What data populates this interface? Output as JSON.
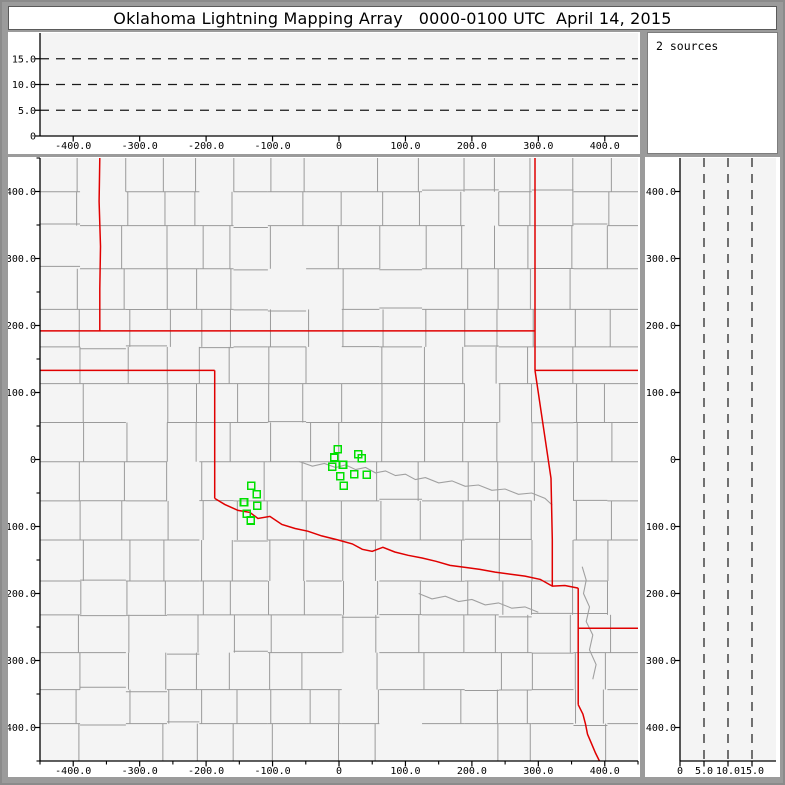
{
  "window": {
    "title": "Oklahoma Lightning Mapping Array   0000-0100 UTC  April 14, 2015"
  },
  "sources_panel": {
    "label": "2 sources"
  },
  "colors": {
    "window_bg": "#9b9b9b",
    "panel_bg": "#ffffff",
    "plot_bg": "#f4f4f4",
    "axis": "#000000",
    "dashed_line": "#1a1a1a",
    "county_line": "#9a9a9a",
    "river_line": "#a0a0a0",
    "state_line": "#e00000",
    "station": "#00e000"
  },
  "chart_data": {
    "type": "scatter",
    "coordinate_units": "km",
    "panels": [
      {
        "id": "ew_altitude_panel",
        "position": "top",
        "description": "altitude (km) vs east-west distance (km); no sources visible",
        "xlim": [
          -450,
          450
        ],
        "ylim": [
          0,
          20
        ],
        "x_ticks": [
          {
            "v": -400,
            "label": "-400.0"
          },
          {
            "v": -300,
            "label": "-300.0"
          },
          {
            "v": -200,
            "label": "-200.0"
          },
          {
            "v": -100,
            "label": "-100.0"
          },
          {
            "v": 0,
            "label": "0"
          },
          {
            "v": 100,
            "label": "100.0"
          },
          {
            "v": 200,
            "label": "200.0"
          },
          {
            "v": 300,
            "label": "300.0"
          },
          {
            "v": 400,
            "label": "400.0"
          }
        ],
        "y_ticks": [
          {
            "v": 0,
            "label": "0"
          },
          {
            "v": 5,
            "label": "5.0"
          },
          {
            "v": 10,
            "label": "10.0"
          },
          {
            "v": 15,
            "label": "15.0"
          }
        ],
        "dashed_lines": {
          "axis": "y",
          "values": [
            5,
            10,
            15
          ]
        },
        "points": []
      },
      {
        "id": "plan_view_panel",
        "position": "main",
        "description": "plan view map, north-south km vs east-west km",
        "xlim": [
          -450,
          450
        ],
        "ylim": [
          -450,
          450
        ],
        "minor_tick_step": 50,
        "x_ticks": [
          {
            "v": -400,
            "label": "-400.0"
          },
          {
            "v": -300,
            "label": "-300.0"
          },
          {
            "v": -200,
            "label": "-200.0"
          },
          {
            "v": -100,
            "label": "-100.0"
          },
          {
            "v": 0,
            "label": "0"
          },
          {
            "v": 100,
            "label": "100.0"
          },
          {
            "v": 200,
            "label": "200.0"
          },
          {
            "v": 300,
            "label": "300.0"
          },
          {
            "v": 400,
            "label": "400.0"
          }
        ],
        "y_ticks": [
          {
            "v": 400,
            "label": "400.0"
          },
          {
            "v": 300,
            "label": "300.0"
          },
          {
            "v": 200,
            "label": "200.0"
          },
          {
            "v": 100,
            "label": "100.0"
          },
          {
            "v": 0,
            "label": "0"
          },
          {
            "v": -100,
            "label": "-100.0"
          },
          {
            "v": -200,
            "label": "-200.0"
          },
          {
            "v": -300,
            "label": "-300.0"
          },
          {
            "v": -400,
            "label": "-400.0"
          }
        ],
        "stations": [
          [
            -2,
            15
          ],
          [
            -7,
            3
          ],
          [
            29,
            8
          ],
          [
            34,
            2
          ],
          [
            -10,
            -11
          ],
          [
            6,
            -8
          ],
          [
            2,
            -25
          ],
          [
            23,
            -22
          ],
          [
            42,
            -23
          ],
          [
            7,
            -39
          ],
          [
            -132,
            -39
          ],
          [
            -124,
            -52
          ],
          [
            -143,
            -64
          ],
          [
            -123,
            -69
          ],
          [
            -139,
            -81
          ],
          [
            -133,
            -91
          ]
        ],
        "state_borders": [
          {
            "name": "kansas-colorado-border",
            "points": [
              [
                -360,
                450
              ],
              [
                -361,
                385
              ],
              [
                -359,
                318
              ],
              [
                -360,
                255
              ],
              [
                -360,
                192
              ]
            ]
          },
          {
            "name": "thirty-seventh-parallel",
            "points": [
              [
                -450,
                192
              ],
              [
                295,
                192
              ]
            ]
          },
          {
            "name": "missouri-western-border",
            "points": [
              [
                295,
                450
              ],
              [
                295,
                133
              ]
            ]
          },
          {
            "name": "missouri-arkansas-border",
            "points": [
              [
                295,
                133
              ],
              [
                450,
                133
              ]
            ]
          },
          {
            "name": "panhandle-southern-border",
            "points": [
              [
                -450,
                133
              ],
              [
                -187,
                133
              ]
            ]
          },
          {
            "name": "oklahoma-western-border",
            "points": [
              [
                -187,
                133
              ],
              [
                -187,
                -58
              ]
            ]
          },
          {
            "name": "oklahoma-arkansas-border",
            "points": [
              [
                295,
                133
              ],
              [
                319,
                -28
              ],
              [
                321,
                -120
              ],
              [
                321,
                -189
              ]
            ]
          },
          {
            "name": "red-river-border",
            "points": [
              [
                -187,
                -58
              ],
              [
                -172,
                -67
              ],
              [
                -152,
                -76
              ],
              [
                -134,
                -79
              ],
              [
                -122,
                -88
              ],
              [
                -104,
                -85
              ],
              [
                -86,
                -97
              ],
              [
                -66,
                -103
              ],
              [
                -47,
                -107
              ],
              [
                -26,
                -114
              ],
              [
                -2,
                -120
              ],
              [
                20,
                -126
              ],
              [
                35,
                -134
              ],
              [
                50,
                -137
              ],
              [
                66,
                -131
              ],
              [
                84,
                -138
              ],
              [
                104,
                -143
              ],
              [
                125,
                -147
              ],
              [
                146,
                -152
              ],
              [
                167,
                -158
              ],
              [
                190,
                -161
              ],
              [
                212,
                -164
              ],
              [
                235,
                -168
              ],
              [
                257,
                -171
              ],
              [
                280,
                -174
              ],
              [
                303,
                -179
              ],
              [
                321,
                -189
              ],
              [
                340,
                -188
              ],
              [
                360,
                -192
              ]
            ]
          },
          {
            "name": "texas-arkansas-border",
            "points": [
              [
                360,
                -192
              ],
              [
                360,
                -366
              ]
            ]
          },
          {
            "name": "arkansas-louisiana-border",
            "points": [
              [
                360,
                -252
              ],
              [
                450,
                -252
              ]
            ]
          },
          {
            "name": "sabine-river-border",
            "points": [
              [
                360,
                -366
              ],
              [
                367,
                -380
              ],
              [
                371,
                -395
              ],
              [
                374,
                -410
              ],
              [
                380,
                -424
              ],
              [
                386,
                -438
              ],
              [
                393,
                -452
              ],
              [
                398,
                -462
              ]
            ]
          }
        ],
        "rivers": [
          {
            "name": "river-central",
            "points": [
              [
                -60,
                -3
              ],
              [
                -40,
                -10
              ],
              [
                -22,
                -6
              ],
              [
                -5,
                -12
              ],
              [
                10,
                -8
              ],
              [
                25,
                -15
              ],
              [
                40,
                -12
              ],
              [
                55,
                -20
              ],
              [
                70,
                -17
              ],
              [
                85,
                -24
              ],
              [
                100,
                -22
              ],
              [
                115,
                -30
              ],
              [
                130,
                -27
              ],
              [
                150,
                -35
              ],
              [
                170,
                -32
              ],
              [
                190,
                -40
              ],
              [
                210,
                -38
              ],
              [
                230,
                -46
              ],
              [
                250,
                -44
              ],
              [
                270,
                -52
              ],
              [
                290,
                -50
              ],
              [
                310,
                -58
              ],
              [
                321,
                -68
              ]
            ]
          },
          {
            "name": "river-south",
            "points": [
              [
                120,
                -200
              ],
              [
                140,
                -208
              ],
              [
                160,
                -204
              ],
              [
                180,
                -212
              ],
              [
                200,
                -209
              ],
              [
                220,
                -217
              ],
              [
                240,
                -214
              ],
              [
                260,
                -222
              ],
              [
                280,
                -220
              ],
              [
                300,
                -228
              ]
            ]
          },
          {
            "name": "river-east",
            "points": [
              [
                366,
                -160
              ],
              [
                372,
                -180
              ],
              [
                368,
                -200
              ],
              [
                377,
                -220
              ],
              [
                372,
                -242
              ],
              [
                382,
                -262
              ],
              [
                377,
                -284
              ],
              [
                387,
                -306
              ],
              [
                382,
                -328
              ]
            ]
          }
        ],
        "county_grid_seed": 1337
      },
      {
        "id": "ns_altitude_panel",
        "position": "right",
        "description": "north-south distance (km) vs altitude (km); no sources visible",
        "xlim": [
          0,
          20
        ],
        "ylim": [
          -450,
          450
        ],
        "x_ticks": [
          {
            "v": 0,
            "label": "0"
          },
          {
            "v": 5,
            "label": "5.0"
          },
          {
            "v": 10,
            "label": "10.0"
          },
          {
            "v": 15,
            "label": "15.0"
          }
        ],
        "y_ticks": [
          {
            "v": 400,
            "label": "400.0"
          },
          {
            "v": 300,
            "label": "300.0"
          },
          {
            "v": 200,
            "label": "200.0"
          },
          {
            "v": 100,
            "label": "100.0"
          },
          {
            "v": 0,
            "label": "0"
          },
          {
            "v": -100,
            "label": "-100.0"
          },
          {
            "v": -200,
            "label": "-200.0"
          },
          {
            "v": -300,
            "label": "-300.0"
          },
          {
            "v": -400,
            "label": "-400.0"
          }
        ],
        "dashed_lines": {
          "axis": "x",
          "values": [
            5,
            10,
            15
          ]
        },
        "points": []
      }
    ]
  }
}
